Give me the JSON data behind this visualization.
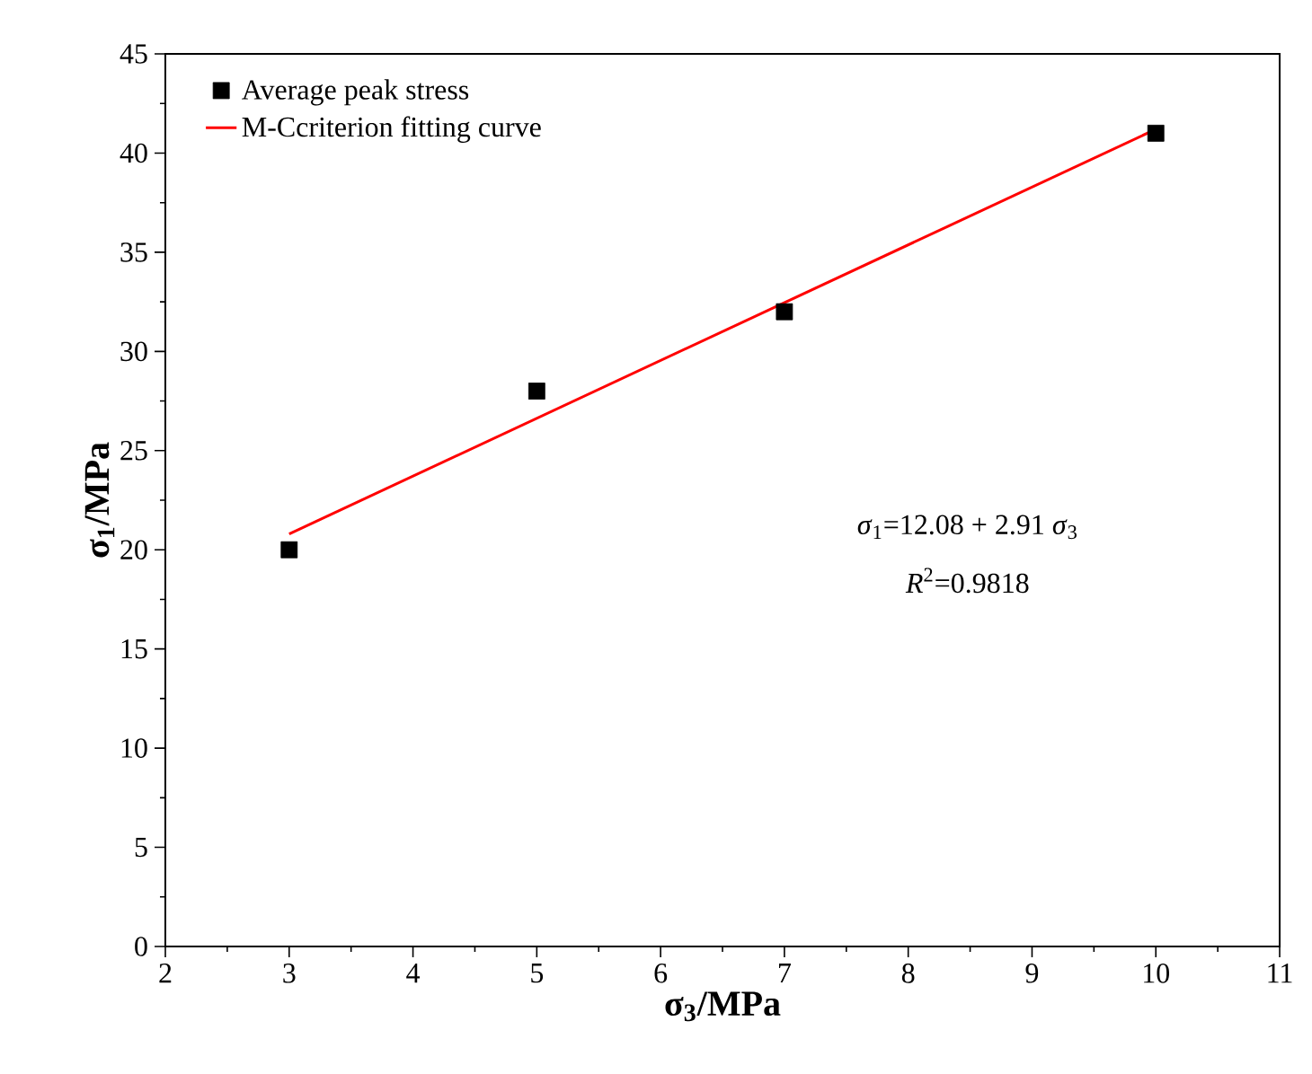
{
  "chart_data": {
    "type": "scatter",
    "xlabel": "σ$_{3}$/MPa",
    "ylabel": "σ$_{1}$/MPa",
    "xlim": [
      2,
      11
    ],
    "xticks": [
      2,
      3,
      4,
      5,
      6,
      7,
      8,
      9,
      10,
      11
    ],
    "ylim": [
      0,
      45
    ],
    "yticks": [
      0,
      5,
      10,
      15,
      20,
      25,
      30,
      35,
      40,
      45
    ],
    "series": [
      {
        "name": "Average peak stress",
        "marker": "square",
        "color": "#000000",
        "x": [
          3,
          5,
          7,
          10
        ],
        "values": [
          20,
          28,
          32,
          41
        ]
      },
      {
        "name": "M-Ccriterion fitting curve",
        "type": "line",
        "color": "#ff0000",
        "x": [
          3,
          10
        ],
        "values": [
          20.8,
          41.2
        ]
      }
    ],
    "annotations": [
      "*σ*$_{1}$=12.08 + 2.91 *σ*$_{3}$",
      "*R*$^{2}$=0.9818"
    ],
    "legend": "top left",
    "grid": false
  }
}
